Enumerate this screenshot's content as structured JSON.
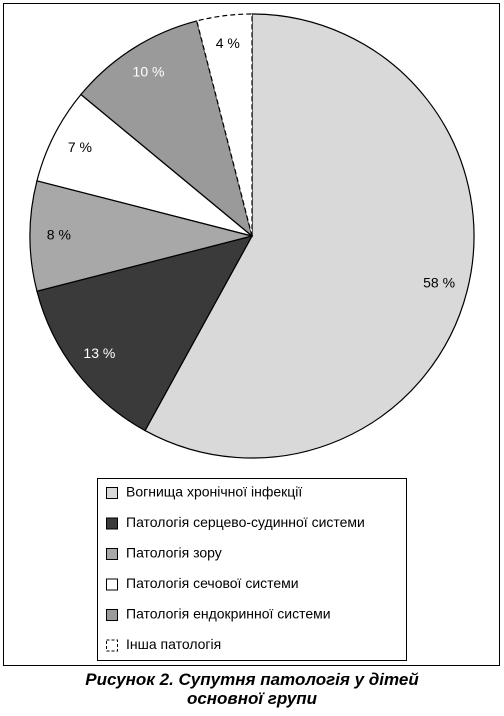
{
  "chart_data": {
    "type": "pie",
    "title": "Рисунок 2. Супутня патологія у дітей основної групи",
    "categories": [
      "Вогнища хронічної інфекції",
      "Патологія серцево-судинної системи",
      "Патологія зору",
      "Патологія сечової системи",
      "Патологія ендокринної системи",
      "Інша патологія"
    ],
    "values": [
      58,
      13,
      8,
      7,
      10,
      4
    ],
    "value_labels": [
      "58 %",
      "13 %",
      "8 %",
      "7 %",
      "10 %",
      "4 %"
    ],
    "colors": [
      "#d9d9d9",
      "#3a3a3a",
      "#a8a8a8",
      "#ffffff",
      "#9a9a9a",
      "#ffffff"
    ]
  }
}
